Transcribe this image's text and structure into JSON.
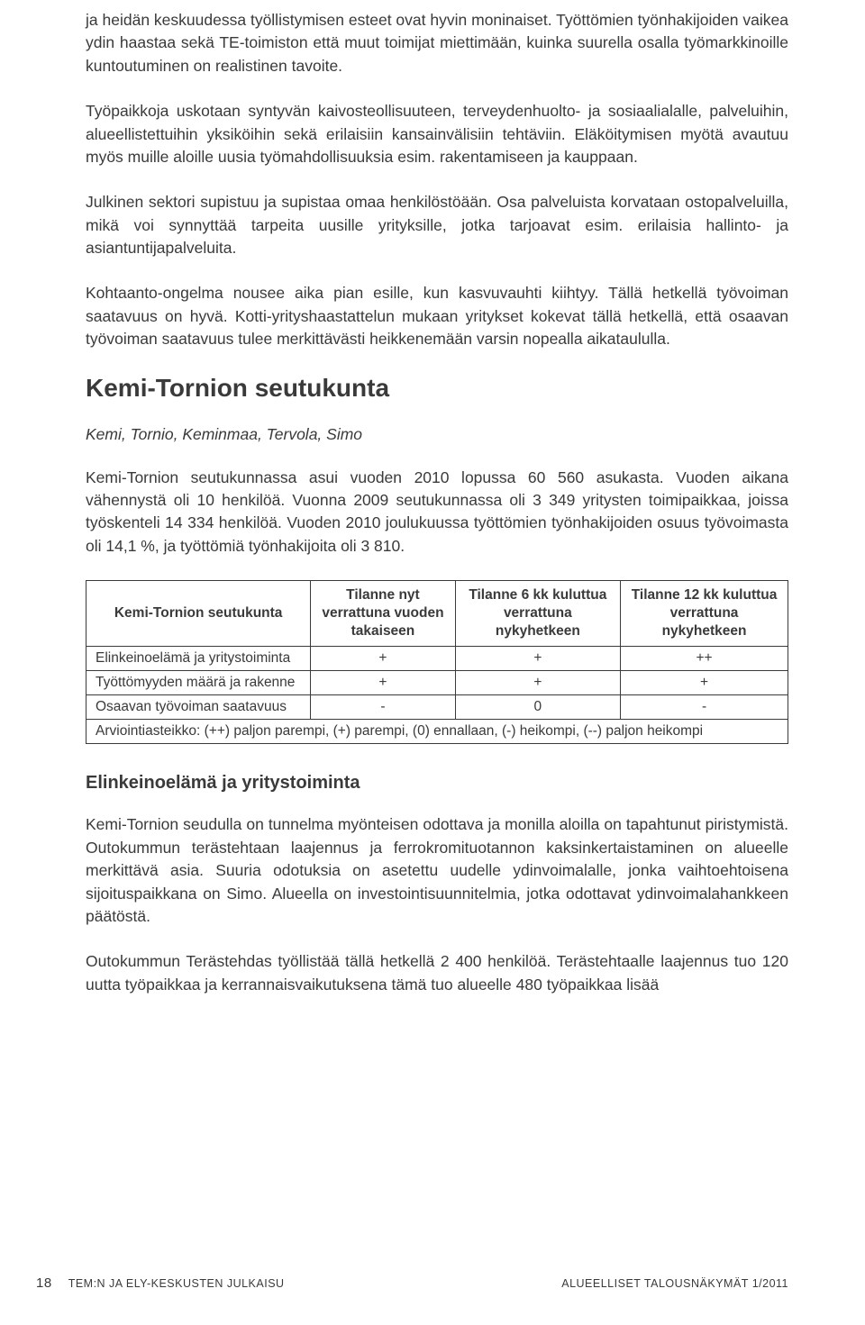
{
  "paragraphs": {
    "p1": "ja heidän keskuudessa työllistymisen esteet ovat hyvin moninaiset. Työttömien työnhakijoiden vaikea ydin haastaa sekä TE-toimiston että muut toimijat miettimään, kuinka suurella osalla työmarkkinoille kuntoutuminen on realistinen tavoite.",
    "p2": "Työpaikkoja uskotaan syntyvän kaivosteollisuuteen, terveydenhuolto- ja sosiaalialalle, palveluihin, alueellistettuihin yksiköihin sekä erilaisiin kansainvälisiin tehtäviin. Eläköitymisen myötä avautuu myös muille aloille uusia työmahdollisuuksia esim. rakentamiseen ja kauppaan.",
    "p3": "Julkinen sektori supistuu ja supistaa omaa henkilöstöään. Osa palveluista korvataan ostopalveluilla, mikä voi synnyttää tarpeita uusille yrityksille, jotka tarjoavat esim. erilaisia hallinto- ja asiantuntijapalveluita.",
    "p4": "Kohtaanto-ongelma nousee aika pian esille, kun kasvuvauhti kiihtyy. Tällä hetkellä työvoiman saatavuus on hyvä. Kotti-yrityshaastattelun mukaan yritykset kokevat tällä hetkellä, että osaavan työvoiman saatavuus tulee merkittävästi heikkenemään varsin nopealla aikataululla.",
    "p5": "Kemi-Tornion seutukunnassa asui vuoden 2010 lopussa 60 560 asukasta. Vuoden aikana vähennystä oli 10 henkilöä. Vuonna 2009 seutukunnassa oli 3 349 yritysten toimipaikkaa, joissa työskenteli 14 334 henkilöä. Vuoden 2010 joulukuussa työttömien työnhakijoiden osuus työvoimasta oli 14,1 %, ja työttömiä työnhakijoita oli 3 810.",
    "p6": "Kemi-Tornion seudulla on tunnelma myönteisen odottava ja monilla aloilla on tapahtunut piristymistä. Outokummun terästehtaan laajennus ja ferrokromituotannon kaksinkertaistaminen on alueelle merkittävä asia. Suuria odotuksia on asetettu uudelle ydinvoimalalle, jonka vaihtoehtoisena sijoituspaikkana on Simo. Alueella on investointisuunnitelmia, jotka odottavat ydinvoimalahankkeen päätöstä.",
    "p7": "Outokummun Terästehdas työllistää tällä hetkellä 2 400 henkilöä. Terästehtaalle laajennus tuo 120 uutta työpaikkaa ja kerrannaisvaikutuksena tämä tuo alueelle 480 työpaikkaa lisää"
  },
  "heading": "Kemi-Tornion seutukunta",
  "subtitle_italic": "Kemi, Tornio, Keminmaa, Tervola, Simo",
  "subheading": "Elinkeinoelämä ja yritystoiminta",
  "table": {
    "caption": "Kemi-Tornion seutukunta",
    "columns": [
      "Tilanne nyt verrattuna vuoden takaiseen",
      "Tilanne 6 kk kuluttua verrattuna nykyhetkeen",
      "Tilanne 12 kk kuluttua verrattuna nykyhetkeen"
    ],
    "rows": [
      {
        "label": "Elinkeinoelämä ja yritystoiminta",
        "c1": "+",
        "c2": "+",
        "c3": "++"
      },
      {
        "label": "Työttömyyden määrä ja rakenne",
        "c1": "+",
        "c2": "+",
        "c3": "+"
      },
      {
        "label": "Osaavan työvoiman saatavuus",
        "c1": "-",
        "c2": "0",
        "c3": "-"
      }
    ],
    "footer": "Arviointiasteikko: (++) paljon parempi, (+) parempi, (0) ennallaan, (-) heikompi, (--) paljon heikompi"
  },
  "footer": {
    "page_number": "18",
    "left_text": "TEM:N JA ELY-KESKUSTEN JULKAISU",
    "right_text": "ALUEELLISET TALOUSNÄKYMÄT 1/2011"
  }
}
